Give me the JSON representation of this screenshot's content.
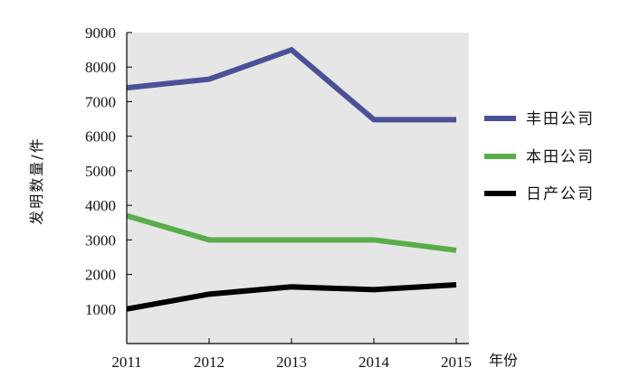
{
  "chart_data": {
    "type": "line",
    "title": "",
    "xlabel": "年份",
    "ylabel": "发明数量/件",
    "categories": [
      "2011",
      "2012",
      "2013",
      "2014",
      "2015"
    ],
    "ylim": [
      0,
      9000
    ],
    "yticks": [
      1000,
      2000,
      3000,
      4000,
      5000,
      6000,
      7000,
      8000,
      9000
    ],
    "grid": false,
    "legend_position": "right",
    "plot_background": "#e6e6e6",
    "series": [
      {
        "name": "丰田公司",
        "color": "#4a5196",
        "values": [
          7400,
          7650,
          8500,
          6480,
          6480
        ]
      },
      {
        "name": "本田公司",
        "color": "#59ad4a",
        "values": [
          3700,
          3000,
          3000,
          3000,
          2700
        ]
      },
      {
        "name": "日产公司",
        "color": "#000000",
        "values": [
          1000,
          1430,
          1640,
          1560,
          1700
        ]
      }
    ]
  }
}
